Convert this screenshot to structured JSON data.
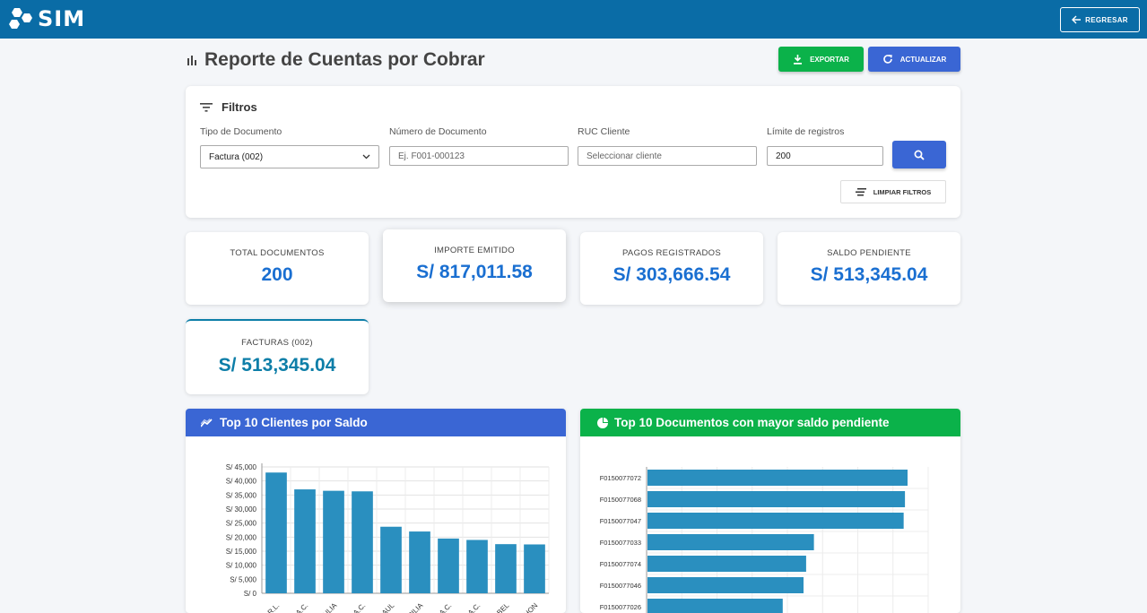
{
  "app": {
    "logo_text": "SIM",
    "back_label": "REGRESAR"
  },
  "header": {
    "title": "Reporte de Cuentas por Cobrar",
    "export_label": "EXPORTAR",
    "refresh_label": "ACTUALIZAR"
  },
  "filters": {
    "title": "Filtros",
    "doc_type_label": "Tipo de Documento",
    "doc_type_value": "Factura (002)",
    "doc_number_label": "Número de Documento",
    "doc_number_placeholder": "Ej. F001-000123",
    "ruc_label": "RUC Cliente",
    "ruc_placeholder": "Seleccionar cliente",
    "limit_label": "Límite de registros",
    "limit_value": "200",
    "clear_label": "LIMPIAR FILTROS"
  },
  "stats": {
    "total_docs_label": "TOTAL DOCUMENTOS",
    "total_docs_value": "200",
    "issued_label": "IMPORTE EMITIDO",
    "issued_value": "S/ 817,011.58",
    "payments_label": "PAGOS REGISTRADOS",
    "payments_value": "S/ 303,666.54",
    "pending_label": "SALDO PENDIENTE",
    "pending_value": "S/ 513,345.04",
    "invoices_label": "FACTURAS (002)",
    "invoices_value": "S/ 513,345.04"
  },
  "colors": {
    "topbar": "#0a6ca6",
    "accent_blue": "#3a66d4",
    "accent_green": "#0bb24a",
    "bar": "#2a8fbf",
    "value_blue": "#1a6fd1",
    "value_teal": "#0d7ea8"
  },
  "chart_data": [
    {
      "type": "bar",
      "title": "Top 10 Clientes por Saldo",
      "categories": [
        "...R.L.",
        "...A.C.",
        "...JULIA",
        "...A.C.",
        "...SAUL",
        "...CILIA",
        "...A.C.",
        "...A.C.",
        "...ABEL",
        "...JHON"
      ],
      "values": [
        43000,
        37000,
        36500,
        36300,
        23700,
        22000,
        19500,
        19000,
        17500,
        17400
      ],
      "y_ticks": [
        "S/ 0",
        "S/ 5,000",
        "S/ 10,000",
        "S/ 15,000",
        "S/ 20,000",
        "S/ 25,000",
        "S/ 30,000",
        "S/ 35,000",
        "S/ 40,000",
        "S/ 45,000"
      ],
      "ylim": [
        0,
        45000
      ],
      "grid": true
    },
    {
      "type": "bar",
      "orientation": "horizontal",
      "title": "Top 10 Documentos con mayor saldo pendiente",
      "categories": [
        "F0150077072",
        "F0150077068",
        "F0150077047",
        "F0150077033",
        "F0150077074",
        "F0150077046",
        "F0150077026"
      ],
      "values": [
        1.0,
        0.99,
        0.985,
        0.64,
        0.61,
        0.6,
        0.52
      ],
      "grid": true
    }
  ]
}
